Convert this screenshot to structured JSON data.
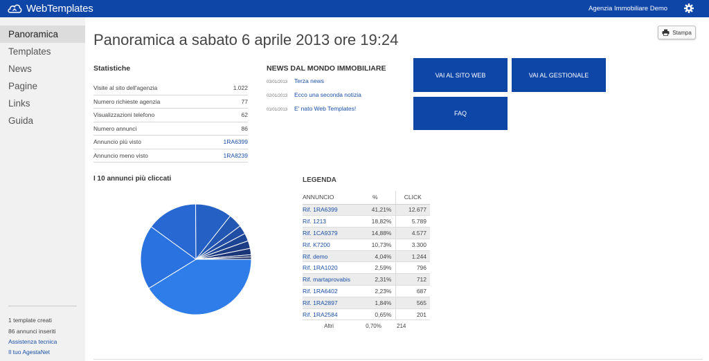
{
  "app": {
    "brand": "WebTemplates",
    "agency": "Agenzia Immobiliare Demo"
  },
  "sidebar": {
    "items": [
      {
        "label": "Panoramica",
        "active": true
      },
      {
        "label": "Templates"
      },
      {
        "label": "News"
      },
      {
        "label": "Pagine"
      },
      {
        "label": "Links"
      },
      {
        "label": "Guida"
      }
    ],
    "footer": {
      "templates": "1 template creati",
      "annunci": "86 annunci inseriti",
      "assistenza": "Assistenza tecnica",
      "agestanet": "Il tuo AgestaNet"
    }
  },
  "page": {
    "title": "Panoramica a sabato 6 aprile 2013 ore 19:24",
    "print_label": "Stampa"
  },
  "stats": {
    "heading": "Statistiche",
    "rows": [
      {
        "label": "Visite al sito dell'agenzia",
        "value": "1.022"
      },
      {
        "label": "Numero richieste agenzia",
        "value": "77"
      },
      {
        "label": "Visualizzazioni telefono",
        "value": "62"
      },
      {
        "label": "Numero annunci",
        "value": "86"
      },
      {
        "label": "Annuncio più visto",
        "value": "1RA6399"
      },
      {
        "label": "Annuncio meno visto",
        "value": "1RA8239"
      }
    ]
  },
  "news": {
    "heading": "NEWS DAL MONDO IMMOBILIARE",
    "items": [
      {
        "date": "03/01/2013",
        "title": "Terza news"
      },
      {
        "date": "02/01/2013",
        "title": "Ecco una seconda notizia"
      },
      {
        "date": "01/01/2013",
        "title": "E' nato Web Templates!"
      }
    ]
  },
  "tiles": {
    "sito_web": "VAI AL SITO WEB",
    "gestionale": "VAI AL GESTIONALE",
    "faq": "FAQ"
  },
  "chart": {
    "title": "I 10 annunci più cliccati"
  },
  "legend": {
    "heading": "LEGENDA",
    "columns": [
      "ANNUNCIO",
      "%",
      "CLICK"
    ],
    "rows": [
      {
        "name": "Rif. 1RA6399",
        "pct": "41,21%",
        "click": "12.677"
      },
      {
        "name": "Rif. 1213",
        "pct": "18,82%",
        "click": "5.789"
      },
      {
        "name": "Rif. 1CA9379",
        "pct": "14,88%",
        "click": "4.577"
      },
      {
        "name": "Rif. K7200",
        "pct": "10,73%",
        "click": "3.300"
      },
      {
        "name": "Rif. demo",
        "pct": "4,04%",
        "click": "1.244"
      },
      {
        "name": "Rif. 1RA1020",
        "pct": "2,59%",
        "click": "796"
      },
      {
        "name": "Rif. martaprovabis",
        "pct": "2,31%",
        "click": "712"
      },
      {
        "name": "Rif. 1RA6402",
        "pct": "2,23%",
        "click": "687"
      },
      {
        "name": "Rif. 1RA2897",
        "pct": "1,84%",
        "click": "565"
      },
      {
        "name": "Rif. 1RA2584",
        "pct": "0,65%",
        "click": "201"
      }
    ],
    "other": {
      "name": "Altri",
      "pct": "0,70%",
      "click": "214"
    }
  },
  "chart_data": {
    "type": "pie",
    "title": "I 10 annunci più cliccati",
    "categories": [
      "Rif. 1RA6399",
      "Rif. 1213",
      "Rif. 1CA9379",
      "Rif. K7200",
      "Rif. demo",
      "Rif. 1RA1020",
      "Rif. martaprovabis",
      "Rif. 1RA6402",
      "Rif. 1RA2897",
      "Rif. 1RA2584",
      "Altri"
    ],
    "values": [
      12677,
      5789,
      4577,
      3300,
      1244,
      796,
      712,
      687,
      565,
      201,
      214
    ],
    "colors": [
      "#2f7de8",
      "#2a72df",
      "#2768d3",
      "#2560c4",
      "#2357b4",
      "#214ea4",
      "#1e4595",
      "#1c3d86",
      "#1a3578",
      "#182e6b",
      "#16285e"
    ]
  }
}
